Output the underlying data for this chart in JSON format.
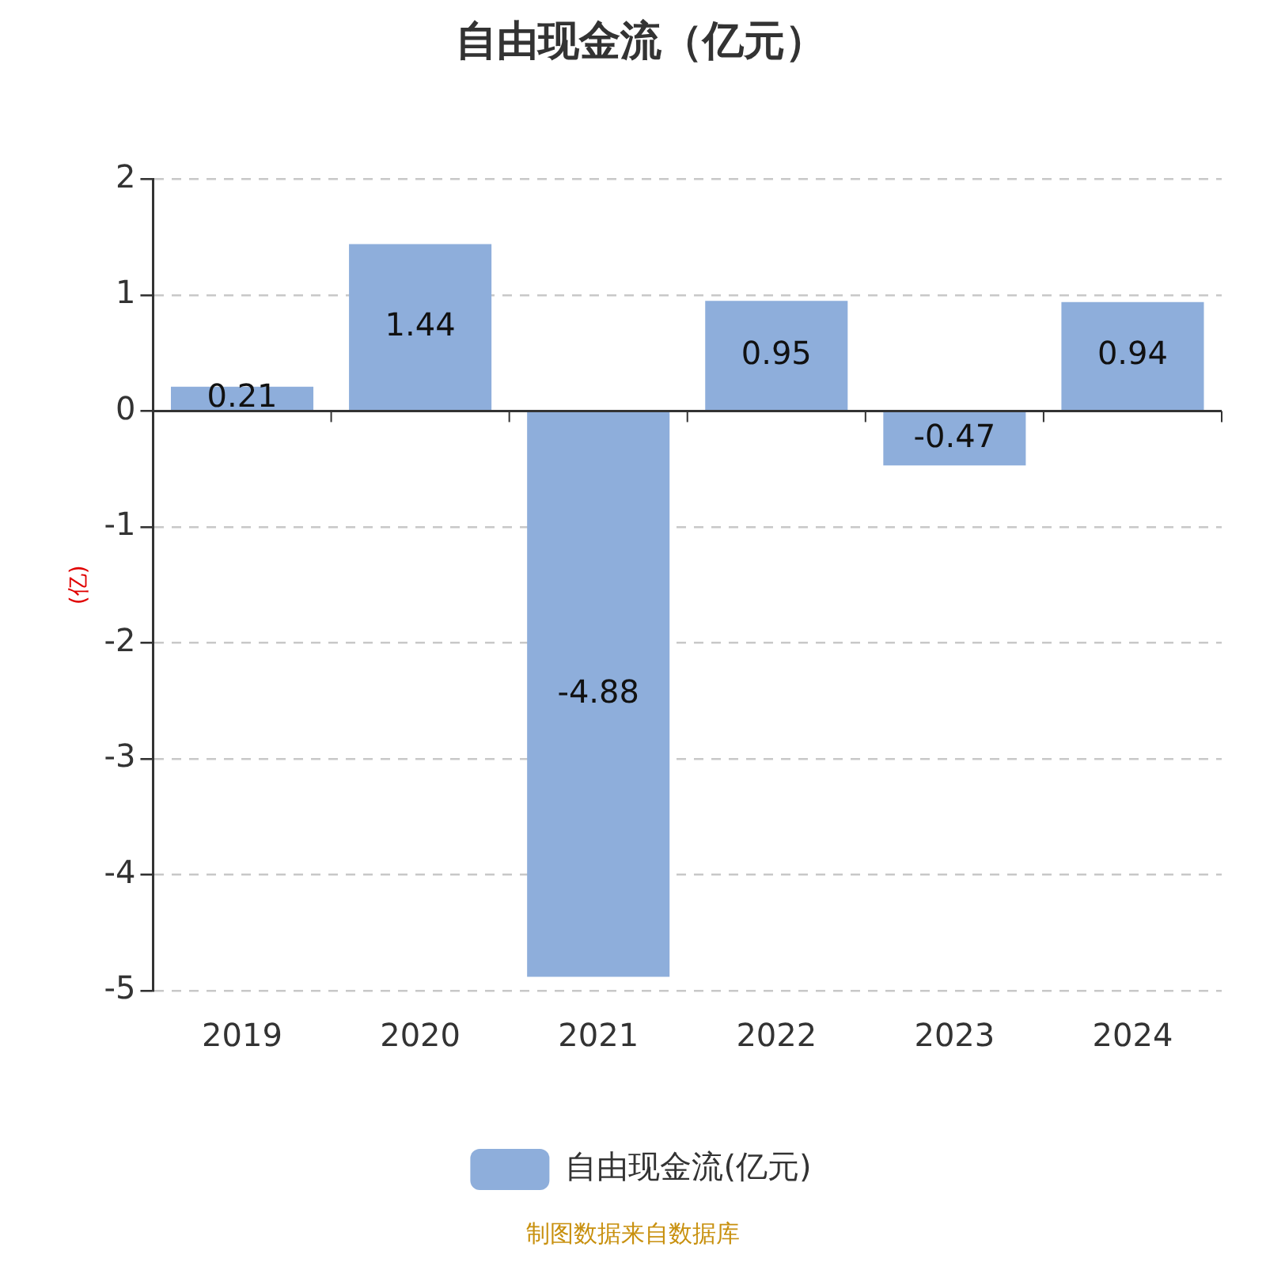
{
  "chart_data": {
    "type": "bar",
    "title": "自由现金流（亿元）",
    "ylabel": "(亿)",
    "categories": [
      "2019",
      "2020",
      "2021",
      "2022",
      "2023",
      "2024"
    ],
    "series": [
      {
        "name": "自由现金流(亿元)",
        "color": "#8eaedb",
        "values": [
          0.21,
          1.44,
          -4.88,
          0.95,
          -0.47,
          0.94
        ]
      }
    ],
    "ylim": [
      -5,
      2
    ],
    "yticks": [
      -5,
      -4,
      -3,
      -2,
      -1,
      0,
      1,
      2
    ],
    "grid": "y",
    "legend": "bottom",
    "data_labels": true,
    "annotations": [
      "制图数据来自数据库"
    ]
  }
}
